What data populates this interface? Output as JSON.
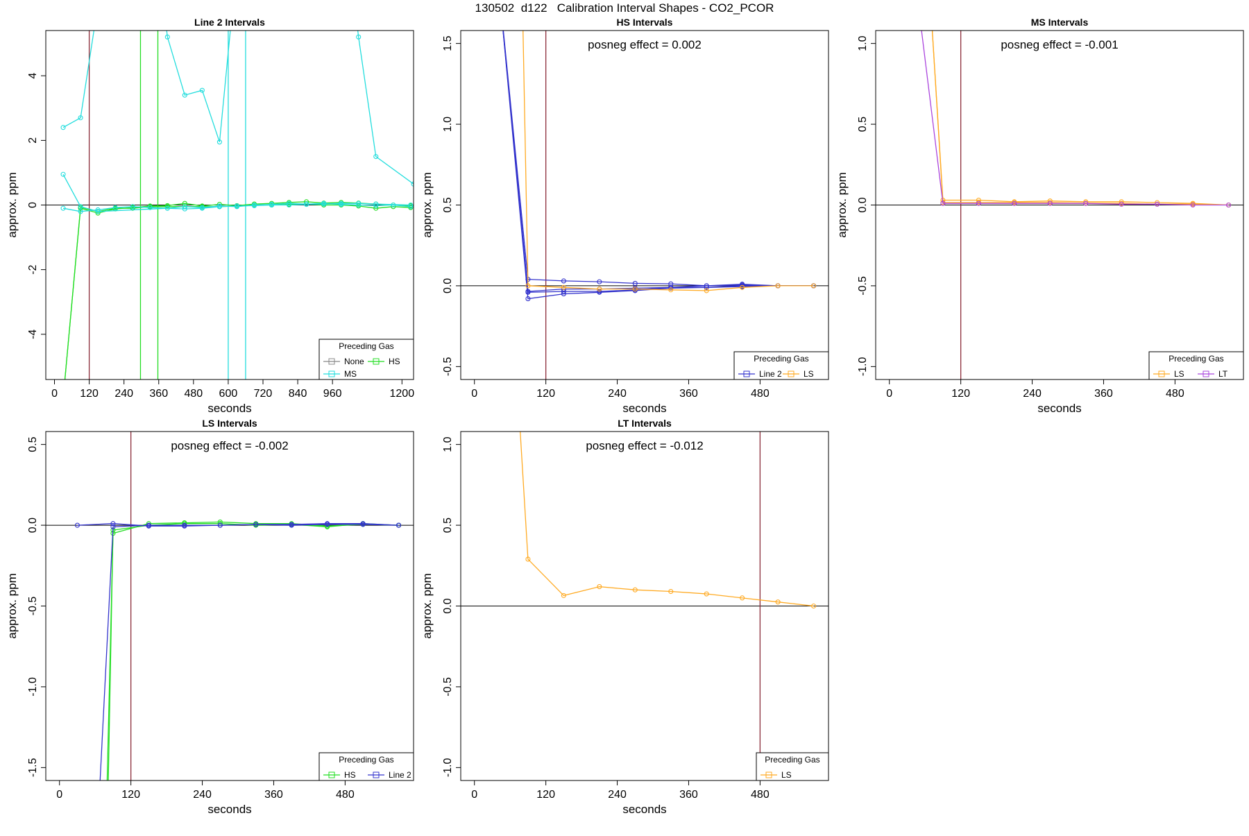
{
  "figure": {
    "title": "130502  d122   Calibration Interval Shapes - CO2_PCOR"
  },
  "colors": {
    "none": "#888888",
    "hs": "#22dd22",
    "ms": "#22dddd",
    "line2": "#3333cc",
    "ls": "#ffaa22",
    "lt": "#aa44dd",
    "ref_line": "#8b2c3a"
  },
  "chart_data": [
    {
      "type": "line",
      "title": "Line 2 Intervals",
      "xlabel": "seconds",
      "ylabel": "approx. ppm",
      "xlim": [
        -30,
        1240
      ],
      "ylim": [
        -5.4,
        5.4
      ],
      "xticks": [
        0,
        120,
        240,
        360,
        480,
        600,
        720,
        840,
        960,
        1200
      ],
      "yticks": [
        -4,
        -2,
        0,
        2,
        4
      ],
      "annotation": "",
      "legend": {
        "title": "Preceding Gas",
        "position": "bottom-right",
        "entries": [
          "None",
          "HS",
          "MS"
        ]
      },
      "vlines": [
        {
          "x": 120,
          "color": "ref_line"
        },
        {
          "x": 297,
          "color": "hs"
        },
        {
          "x": 357,
          "color": "hs"
        },
        {
          "x": 600,
          "color": "ms"
        },
        {
          "x": 660,
          "color": "ms"
        }
      ],
      "series": [
        {
          "name": "HS",
          "color": "hs",
          "x": [
            30,
            90,
            150,
            210,
            270,
            330,
            390,
            450,
            510,
            570,
            630,
            690,
            750,
            810,
            870,
            930,
            990,
            1050,
            1110,
            1170,
            1230
          ],
          "y": [
            -6.0,
            -0.07,
            -0.2,
            -0.1,
            -0.1,
            -0.05,
            -0.05,
            -0.05,
            -0.05,
            -0.05,
            -0.03,
            0.0,
            0.0,
            0.02,
            0.03,
            0.0,
            0.0,
            -0.03,
            -0.1,
            -0.05,
            -0.08
          ]
        },
        {
          "name": "HS",
          "color": "hs",
          "x": [
            30,
            90,
            150,
            210,
            270,
            330,
            390,
            450,
            510,
            570,
            630,
            690,
            750,
            810,
            870,
            930,
            990,
            1050,
            1110,
            1170,
            1230
          ],
          "y": [
            -6.0,
            -0.1,
            -0.25,
            -0.12,
            -0.08,
            -0.03,
            -0.02,
            0.05,
            -0.03,
            0.02,
            -0.02,
            0.03,
            0.05,
            0.08,
            0.1,
            0.06,
            0.08,
            0.06,
            0.03,
            0.0,
            -0.02
          ]
        },
        {
          "name": "MS",
          "color": "ms",
          "x": [
            30,
            90,
            150,
            390,
            450,
            510,
            570,
            630,
            690,
            750,
            810,
            870,
            930,
            990,
            1050,
            1110,
            1230
          ],
          "y": [
            0.95,
            -0.05,
            -0.2,
            -0.1,
            -0.12,
            -0.1,
            -0.05,
            -0.03,
            -0.02,
            0.0,
            0.0,
            0.02,
            0.03,
            0.05,
            0.05,
            0.03,
            0.0
          ]
        },
        {
          "name": "MS",
          "color": "ms",
          "x": [
            30,
            90,
            150,
            210,
            270,
            330,
            390,
            450,
            510,
            570,
            630,
            690,
            750,
            810,
            870,
            930,
            990,
            1050,
            1110,
            1170,
            1230
          ],
          "y": [
            -0.1,
            -0.2,
            -0.15,
            -0.08,
            -0.05,
            -0.08,
            -0.1,
            -0.05,
            -0.08,
            -0.03,
            -0.05,
            0.0,
            0.02,
            0.05,
            0.03,
            0.05,
            0.02,
            0.0,
            -0.02,
            0.0,
            -0.05
          ]
        },
        {
          "name": "MS",
          "color": "ms",
          "x": [
            30,
            90,
            150
          ],
          "y": [
            2.4,
            2.7,
            6.2
          ]
        },
        {
          "name": "MS",
          "color": "ms",
          "x": [
            360,
            390,
            450,
            510,
            570,
            630
          ],
          "y": [
            7.5,
            5.2,
            3.4,
            3.55,
            1.95,
            7.5
          ]
        },
        {
          "name": "MS",
          "color": "ms",
          "x": [
            1020,
            1050,
            1110,
            1240
          ],
          "y": [
            7.5,
            5.2,
            1.5,
            0.65
          ]
        }
      ]
    },
    {
      "type": "line",
      "title": "HS Intervals",
      "xlabel": "seconds",
      "ylabel": "approx. ppm",
      "xlim": [
        -23,
        595
      ],
      "ylim": [
        -0.58,
        1.58
      ],
      "xticks": [
        0,
        120,
        240,
        360,
        480
      ],
      "yticks": [
        -0.5,
        0.0,
        0.5,
        1.0,
        1.5
      ],
      "annotation": "posneg effect = 0.002",
      "legend": {
        "title": "Preceding Gas",
        "position": "bottom-right",
        "entries": [
          "Line 2",
          "LS"
        ]
      },
      "vlines": [
        {
          "x": 120,
          "color": "ref_line"
        }
      ],
      "series": [
        {
          "name": "Line 2",
          "color": "line2",
          "x": [
            40,
            90,
            150,
            210,
            270,
            330,
            390,
            450,
            510,
            570
          ],
          "y": [
            1.9,
            0.04,
            0.03,
            0.025,
            0.015,
            0.012,
            0.0,
            0.005,
            0.0,
            0.0
          ]
        },
        {
          "name": "Line 2",
          "color": "line2",
          "x": [
            40,
            90,
            150,
            210,
            270,
            330,
            390,
            450,
            510,
            570
          ],
          "y": [
            1.9,
            -0.04,
            -0.035,
            -0.035,
            -0.025,
            -0.01,
            -0.01,
            -0.005,
            0.0,
            0.0
          ]
        },
        {
          "name": "Line 2",
          "color": "line2",
          "x": [
            40,
            90,
            150,
            210,
            270,
            330,
            390,
            450,
            510,
            570
          ],
          "y": [
            1.9,
            -0.08,
            -0.05,
            -0.04,
            -0.03,
            -0.015,
            -0.01,
            0.0,
            0.0,
            0.0
          ]
        },
        {
          "name": "Line 2",
          "color": "line2",
          "x": [
            40,
            90,
            150,
            210,
            270,
            330,
            390,
            450,
            510,
            570
          ],
          "y": [
            1.9,
            -0.035,
            -0.02,
            -0.02,
            -0.015,
            -0.01,
            0.0,
            0.01,
            0.0,
            0.0
          ]
        },
        {
          "name": "LS",
          "color": "ls",
          "x": [
            80,
            90,
            150,
            210,
            270,
            330,
            390,
            450,
            510,
            570
          ],
          "y": [
            1.9,
            0.0,
            -0.01,
            -0.02,
            -0.02,
            -0.025,
            -0.03,
            -0.01,
            0.0,
            0.0
          ]
        }
      ]
    },
    {
      "type": "line",
      "title": "MS Intervals",
      "xlabel": "seconds",
      "ylabel": "approx. ppm",
      "xlim": [
        -23,
        595
      ],
      "ylim": [
        -1.08,
        1.08
      ],
      "xticks": [
        0,
        120,
        240,
        360,
        480
      ],
      "yticks": [
        -1.0,
        -0.5,
        0.0,
        0.5,
        1.0
      ],
      "annotation": "posneg effect = -0.001",
      "legend": {
        "title": "Preceding Gas",
        "position": "bottom-right",
        "entries": [
          "LS",
          "LT"
        ]
      },
      "vlines": [
        {
          "x": 120,
          "color": "ref_line"
        }
      ],
      "series": [
        {
          "name": "LS",
          "color": "ls",
          "x": [
            70,
            90,
            150,
            210,
            270,
            330,
            390,
            450,
            510,
            570
          ],
          "y": [
            1.2,
            0.03,
            0.03,
            0.02,
            0.025,
            0.02,
            0.02,
            0.015,
            0.01,
            0.0
          ]
        },
        {
          "name": "LS",
          "color": "ls",
          "x": [
            70,
            90,
            150,
            210,
            270,
            330,
            390,
            450,
            510,
            570
          ],
          "y": [
            1.2,
            0.015,
            0.015,
            0.015,
            0.015,
            0.012,
            0.01,
            0.005,
            0.005,
            0.0
          ]
        },
        {
          "name": "LT",
          "color": "lt",
          "x": [
            50,
            90,
            150,
            210,
            270,
            330,
            390,
            450,
            510,
            570
          ],
          "y": [
            1.2,
            0.01,
            0.01,
            0.01,
            0.01,
            0.01,
            0.005,
            0.005,
            0.0,
            0.0
          ]
        }
      ]
    },
    {
      "type": "line",
      "title": "LS Intervals",
      "xlabel": "seconds",
      "ylabel": "approx. ppm",
      "xlim": [
        -23,
        595
      ],
      "ylim": [
        -1.58,
        0.58
      ],
      "xticks": [
        0,
        120,
        240,
        360,
        480
      ],
      "yticks": [
        -1.5,
        -1.0,
        -0.5,
        0.0,
        0.5
      ],
      "annotation": "posneg effect = -0.002",
      "legend": {
        "title": "Preceding Gas",
        "position": "bottom-right",
        "entries": [
          "HS",
          "Line 2"
        ]
      },
      "vlines": [
        {
          "x": 120,
          "color": "ref_line"
        }
      ],
      "series": [
        {
          "name": "HS",
          "color": "hs",
          "x": [
            80,
            90,
            150,
            210,
            270,
            330,
            390,
            450,
            510,
            570
          ],
          "y": [
            -1.6,
            -0.05,
            0.01,
            0.015,
            0.02,
            0.01,
            0.01,
            -0.005,
            0.005,
            0.0
          ]
        },
        {
          "name": "HS",
          "color": "hs",
          "x": [
            82,
            90,
            150,
            210,
            270,
            330,
            390,
            450,
            510,
            570
          ],
          "y": [
            -1.6,
            -0.03,
            0.0,
            0.01,
            0.01,
            0.0,
            0.005,
            -0.01,
            0.01,
            0.0
          ]
        },
        {
          "name": "Line 2",
          "color": "line2",
          "x": [
            30,
            90,
            150,
            210,
            270,
            330,
            390,
            450,
            510,
            570
          ],
          "y": [
            0.0,
            0.01,
            -0.005,
            -0.005,
            0.0,
            0.005,
            0.005,
            0.01,
            0.01,
            0.0
          ]
        },
        {
          "name": "Line 2",
          "color": "line2",
          "x": [
            68,
            90,
            150,
            210,
            270,
            330,
            390,
            450,
            510,
            570
          ],
          "y": [
            -1.6,
            -0.01,
            0.0,
            0.0,
            0.0,
            0.005,
            0.0,
            0.005,
            0.005,
            0.0
          ]
        }
      ]
    },
    {
      "type": "line",
      "title": "LT Intervals",
      "xlabel": "seconds",
      "ylabel": "approx. ppm",
      "xlim": [
        -23,
        595
      ],
      "ylim": [
        -1.08,
        1.08
      ],
      "xticks": [
        0,
        120,
        240,
        360,
        480
      ],
      "yticks": [
        -1.0,
        -0.5,
        0.0,
        0.5,
        1.0
      ],
      "annotation": "posneg effect = -0.012",
      "legend": {
        "title": "Preceding Gas",
        "position": "bottom-right",
        "entries": [
          "LS"
        ]
      },
      "vlines": [
        {
          "x": 480,
          "color": "ref_line"
        }
      ],
      "series": [
        {
          "name": "LS",
          "color": "ls",
          "x": [
            75,
            90,
            150,
            210,
            270,
            330,
            390,
            450,
            510,
            570
          ],
          "y": [
            1.2,
            0.29,
            0.065,
            0.12,
            0.1,
            0.09,
            0.075,
            0.05,
            0.025,
            0.0
          ]
        }
      ]
    }
  ]
}
